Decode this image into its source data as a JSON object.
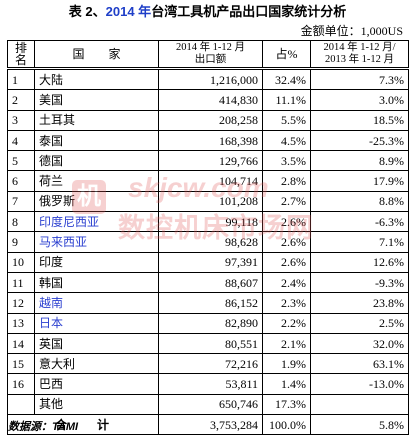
{
  "title": {
    "prefix": "表 2、",
    "year": "2014 年",
    "rest": "台湾工具机产品出口国家统计分析"
  },
  "unit_label": "金额单位：1,000US",
  "headers": {
    "rank": [
      "排",
      "名"
    ],
    "country": "国　　家",
    "export": [
      "2014 年 1-12 月",
      "出口额"
    ],
    "share": "占%",
    "growth": [
      "2014 年 1-12 月/",
      "2013 年 1-12 月"
    ]
  },
  "rows": [
    {
      "rank": "1",
      "country": "大陆",
      "export": "1,216,000",
      "share": "32.4%",
      "growth": "7.3%",
      "highlight": false
    },
    {
      "rank": "2",
      "country": "美国",
      "export": "414,830",
      "share": "11.1%",
      "growth": "3.0%",
      "highlight": false
    },
    {
      "rank": "3",
      "country": "土耳其",
      "export": "208,258",
      "share": "5.5%",
      "growth": "18.5%",
      "highlight": false
    },
    {
      "rank": "4",
      "country": "泰国",
      "export": "168,398",
      "share": "4.5%",
      "growth": "-25.3%",
      "highlight": false
    },
    {
      "rank": "5",
      "country": "德国",
      "export": "129,766",
      "share": "3.5%",
      "growth": "8.9%",
      "highlight": false
    },
    {
      "rank": "6",
      "country": "荷兰",
      "export": "104,714",
      "share": "2.8%",
      "growth": "17.9%",
      "highlight": false
    },
    {
      "rank": "7",
      "country": "俄罗斯",
      "export": "101,208",
      "share": "2.7%",
      "growth": "8.8%",
      "highlight": false
    },
    {
      "rank": "8",
      "country": "印度尼西亚",
      "export": "99,118",
      "share": "2.6%",
      "growth": "-6.3%",
      "highlight": true
    },
    {
      "rank": "9",
      "country": "马来西亚",
      "export": "98,628",
      "share": "2.6%",
      "growth": "7.1%",
      "highlight": true
    },
    {
      "rank": "10",
      "country": "印度",
      "export": "97,391",
      "share": "2.6%",
      "growth": "12.6%",
      "highlight": false
    },
    {
      "rank": "11",
      "country": "韩国",
      "export": "88,607",
      "share": "2.4%",
      "growth": "-9.3%",
      "highlight": false
    },
    {
      "rank": "12",
      "country": "越南",
      "export": "86,152",
      "share": "2.3%",
      "growth": "23.8%",
      "highlight": true
    },
    {
      "rank": "13",
      "country": "日本",
      "export": "82,890",
      "share": "2.2%",
      "growth": "2.5%",
      "highlight": true
    },
    {
      "rank": "14",
      "country": "英国",
      "export": "80,551",
      "share": "2.1%",
      "growth": "32.0%",
      "highlight": false
    },
    {
      "rank": "15",
      "country": "意大利",
      "export": "72,216",
      "share": "1.9%",
      "growth": "63.1%",
      "highlight": false
    },
    {
      "rank": "16",
      "country": "巴西",
      "export": "53,811",
      "share": "1.4%",
      "growth": "-13.0%",
      "highlight": false
    },
    {
      "rank": "",
      "country": "其他",
      "export": "650,746",
      "share": "17.3%",
      "growth": "",
      "highlight": false
    }
  ],
  "total": {
    "label": "合　　计",
    "export": "3,753,284",
    "share": "100.0%",
    "growth": "5.8%"
  },
  "source": "数据源：TAMI",
  "watermark": {
    "logo": "机",
    "site": "skjcw.com",
    "name": "数控机床市场网"
  },
  "colors": {
    "title_year": "#1f3fc8",
    "highlight": "#2a3fd0",
    "watermark": "#e05a5a"
  }
}
